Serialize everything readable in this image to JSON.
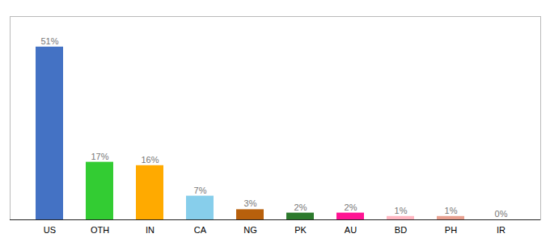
{
  "chart_data": {
    "type": "bar",
    "categories": [
      "US",
      "OTH",
      "IN",
      "CA",
      "NG",
      "PK",
      "AU",
      "BD",
      "PH",
      "IR"
    ],
    "values": [
      51,
      17,
      16,
      7,
      3,
      2,
      2,
      1,
      1,
      0
    ],
    "value_labels": [
      "51%",
      "17%",
      "16%",
      "7%",
      "3%",
      "2%",
      "2%",
      "1%",
      "1%",
      "0%"
    ],
    "colors": [
      "#4472c4",
      "#33cc33",
      "#ffaa00",
      "#87ceeb",
      "#b8600c",
      "#2d7a2d",
      "#ff1493",
      "#ffb6c1",
      "#e8a090",
      "#cccccc"
    ],
    "ylim": [
      0,
      60
    ],
    "data_labels": true,
    "tick_labels": "x",
    "grid": false
  }
}
